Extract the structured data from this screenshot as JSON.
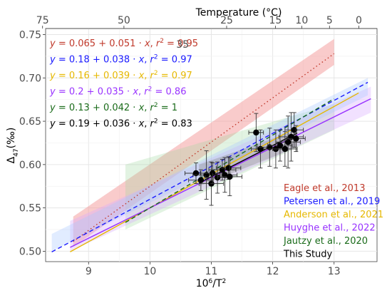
{
  "chart_data": {
    "type": "scatter",
    "xlabel": "10⁶/T²",
    "x2label": "Temperature (°C)",
    "ylabel": "Δ47(‰)",
    "xlim": [
      8.3,
      13.7
    ],
    "ylim": [
      0.488,
      0.757
    ],
    "xticks": [
      9,
      10,
      11,
      12,
      13
    ],
    "yticks": [
      0.5,
      0.55,
      0.6,
      0.65,
      0.7,
      0.75
    ],
    "ytick_labels": [
      "0.50",
      "0.55",
      "0.60",
      "0.65",
      "0.70",
      "0.75"
    ],
    "temp_ticks": [
      75,
      50,
      25,
      15,
      10,
      5,
      0
    ],
    "temp_ticks_extra": [
      35
    ],
    "grid": true,
    "legend_position": "bottom-right",
    "series": [
      {
        "name": "Eagle et al., 2013",
        "color": "#c0392b",
        "dash": "dotted",
        "intercept": 0.065,
        "slope": 0.051,
        "r2": 0.95,
        "x_range": [
          8.75,
          13.0
        ],
        "equation": {
          "y": "y",
          "eq": "=",
          "a": "0.065",
          "plus": "+",
          "b": "0.051",
          "dot": "·",
          "x": "x",
          "comma": ",",
          "r": "r",
          "sup": "2",
          "eq2": "=",
          "r2": "0.95"
        }
      },
      {
        "name": "Petersen et al., 2019",
        "color": "#1a1aff",
        "dash": "dashed",
        "intercept": 0.18,
        "slope": 0.038,
        "r2": 0.97,
        "x_range": [
          8.4,
          13.55
        ],
        "equation": {
          "y": "y",
          "eq": "=",
          "a": "0.18",
          "plus": "+",
          "b": "0.038",
          "dot": "·",
          "x": "x",
          "comma": ",",
          "r": "r",
          "sup": "2",
          "eq2": "=",
          "r2": "0.97"
        }
      },
      {
        "name": "Anderson et al., 2021",
        "color": "#e6b800",
        "dash": "solid",
        "intercept": 0.16,
        "slope": 0.039,
        "r2": 0.97,
        "x_range": [
          8.7,
          13.4
        ],
        "equation": {
          "y": "y",
          "eq": "=",
          "a": "0.16",
          "plus": "+",
          "b": "0.039",
          "dot": "·",
          "x": "x",
          "comma": ",",
          "r": "r",
          "sup": "2",
          "eq2": "=",
          "r2": "0.97"
        }
      },
      {
        "name": "Huyghe et al., 2022",
        "color": "#9933ff",
        "dash": "solid",
        "intercept": 0.2,
        "slope": 0.035,
        "r2": 0.86,
        "x_range": [
          8.7,
          13.6
        ],
        "equation": {
          "y": "y",
          "eq": "=",
          "a": "0.2",
          "plus": "+",
          "b": "0.035",
          "dot": "·",
          "x": "x",
          "comma": ",",
          "r": "r",
          "sup": "2",
          "eq2": "=",
          "r2": "0.86"
        }
      },
      {
        "name": "Jautzy et al., 2020",
        "color": "#1a6b1a",
        "dash": "dashed",
        "intercept": 0.13,
        "slope": 0.042,
        "r2": 1,
        "x_range": [
          9.6,
          13.0
        ],
        "equation": {
          "y": "y",
          "eq": "=",
          "a": "0.13",
          "plus": "+",
          "b": "0.042",
          "dot": "·",
          "x": "x",
          "comma": ",",
          "r": "r",
          "sup": "2",
          "eq2": "=",
          "r2": "1"
        }
      },
      {
        "name": "This Study",
        "color": "#000000",
        "dash": "solid",
        "intercept": 0.19,
        "slope": 0.036,
        "r2": 0.83,
        "x_range": [
          10.8,
          12.4
        ],
        "equation": {
          "y": "y",
          "eq": "=",
          "a": "0.19",
          "plus": "+",
          "b": "0.036",
          "dot": "·",
          "x": "x",
          "comma": ",",
          "r": "r",
          "sup": "2",
          "eq2": "=",
          "r2": "0.83"
        }
      }
    ],
    "bands": [
      {
        "series": "Eagle et al., 2013",
        "color": "#f4a0a0",
        "opacity": 0.55,
        "upper": [
          [
            8.75,
            0.54
          ],
          [
            13.0,
            0.745
          ]
        ],
        "lower": [
          [
            8.75,
            0.505
          ],
          [
            13.0,
            0.715
          ]
        ]
      },
      {
        "series": "Jautzy et al., 2020",
        "color": "#9fd69f",
        "opacity": 0.3,
        "upper": [
          [
            9.6,
            0.6
          ],
          [
            13.0,
            0.67
          ]
        ],
        "lower": [
          [
            9.6,
            0.525
          ],
          [
            13.0,
            0.64
          ]
        ]
      },
      {
        "series": "Huyghe et al., 2022",
        "color": "#d8a8ff",
        "opacity": 0.35,
        "upper": [
          [
            8.7,
            0.535
          ],
          [
            13.6,
            0.69
          ]
        ],
        "lower": [
          [
            8.7,
            0.5
          ],
          [
            13.6,
            0.66
          ]
        ]
      },
      {
        "series": "Petersen et al., 2019",
        "color": "#a8c8ff",
        "opacity": 0.35,
        "upper": [
          [
            8.4,
            0.52
          ],
          [
            13.55,
            0.7
          ]
        ],
        "lower": [
          [
            8.4,
            0.5
          ],
          [
            13.55,
            0.68
          ]
        ]
      },
      {
        "series": "This Study",
        "color": "#888888",
        "opacity": 0.35,
        "upper": [
          [
            10.8,
            0.6
          ],
          [
            12.4,
            0.64
          ]
        ],
        "lower": [
          [
            10.8,
            0.575
          ],
          [
            12.4,
            0.62
          ]
        ]
      }
    ],
    "points": [
      {
        "x": 10.75,
        "y": 0.59,
        "xerr": 0.18,
        "yerr": 0.012
      },
      {
        "x": 10.83,
        "y": 0.582,
        "xerr": 0.2,
        "yerr": 0.012
      },
      {
        "x": 10.92,
        "y": 0.588,
        "xerr": 0.22,
        "yerr": 0.028
      },
      {
        "x": 11.0,
        "y": 0.578,
        "xerr": 0.2,
        "yerr": 0.025
      },
      {
        "x": 11.02,
        "y": 0.59,
        "xerr": 0.2,
        "yerr": 0.012
      },
      {
        "x": 11.1,
        "y": 0.585,
        "xerr": 0.2,
        "yerr": 0.018
      },
      {
        "x": 11.18,
        "y": 0.594,
        "xerr": 0.22,
        "yerr": 0.012
      },
      {
        "x": 11.22,
        "y": 0.588,
        "xerr": 0.2,
        "yerr": 0.02
      },
      {
        "x": 11.28,
        "y": 0.596,
        "xerr": 0.2,
        "yerr": 0.013
      },
      {
        "x": 11.3,
        "y": 0.586,
        "xerr": 0.2,
        "yerr": 0.022
      },
      {
        "x": 11.73,
        "y": 0.637,
        "xerr": 0.12,
        "yerr": 0.022
      },
      {
        "x": 11.8,
        "y": 0.618,
        "xerr": 0.15,
        "yerr": 0.022
      },
      {
        "x": 11.95,
        "y": 0.62,
        "xerr": 0.2,
        "yerr": 0.022
      },
      {
        "x": 12.05,
        "y": 0.618,
        "xerr": 0.2,
        "yerr": 0.022
      },
      {
        "x": 12.12,
        "y": 0.622,
        "xerr": 0.2,
        "yerr": 0.018
      },
      {
        "x": 12.2,
        "y": 0.618,
        "xerr": 0.2,
        "yerr": 0.02
      },
      {
        "x": 12.25,
        "y": 0.626,
        "xerr": 0.2,
        "yerr": 0.03
      },
      {
        "x": 12.3,
        "y": 0.632,
        "xerr": 0.2,
        "yerr": 0.028
      },
      {
        "x": 12.35,
        "y": 0.64,
        "xerr": 0.15,
        "yerr": 0.02
      },
      {
        "x": 12.38,
        "y": 0.63,
        "xerr": 0.15,
        "yerr": 0.015
      }
    ]
  }
}
